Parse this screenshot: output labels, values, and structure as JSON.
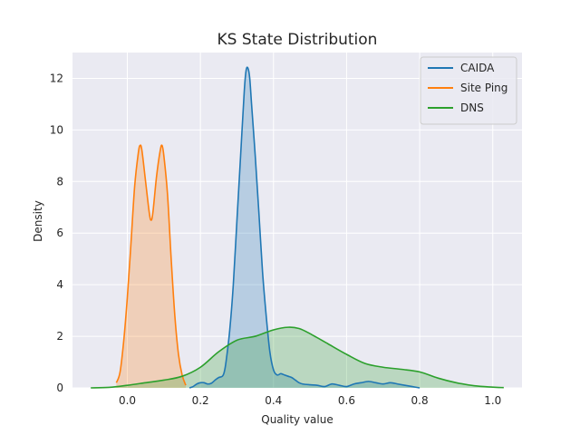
{
  "chart_data": {
    "type": "area",
    "title": "KS State Distribution",
    "xlabel": "Quality value",
    "ylabel": "Density",
    "xlim": [
      -0.15,
      1.08
    ],
    "ylim": [
      0,
      13
    ],
    "xticks": [
      0.0,
      0.2,
      0.4,
      0.6,
      0.8,
      1.0
    ],
    "xtick_labels": [
      "0.0",
      "0.2",
      "0.4",
      "0.6",
      "0.8",
      "1.0"
    ],
    "yticks": [
      0,
      2,
      4,
      6,
      8,
      10,
      12
    ],
    "ytick_labels": [
      "0",
      "2",
      "4",
      "6",
      "8",
      "10",
      "12"
    ],
    "grid": true,
    "legend_position": "top-right",
    "series": [
      {
        "name": "CAIDA",
        "color": "#1f77b4",
        "fill": true,
        "points": [
          [
            0.17,
            0.0
          ],
          [
            0.18,
            0.05
          ],
          [
            0.19,
            0.15
          ],
          [
            0.2,
            0.2
          ],
          [
            0.21,
            0.2
          ],
          [
            0.22,
            0.15
          ],
          [
            0.23,
            0.18
          ],
          [
            0.24,
            0.3
          ],
          [
            0.25,
            0.4
          ],
          [
            0.26,
            0.45
          ],
          [
            0.265,
            0.6
          ],
          [
            0.27,
            1.0
          ],
          [
            0.28,
            2.2
          ],
          [
            0.29,
            4.0
          ],
          [
            0.3,
            6.5
          ],
          [
            0.31,
            9.0
          ],
          [
            0.32,
            11.5
          ],
          [
            0.325,
            12.3
          ],
          [
            0.33,
            12.4
          ],
          [
            0.335,
            12.0
          ],
          [
            0.34,
            11.0
          ],
          [
            0.35,
            9.0
          ],
          [
            0.36,
            6.8
          ],
          [
            0.37,
            4.5
          ],
          [
            0.38,
            2.8
          ],
          [
            0.39,
            1.4
          ],
          [
            0.4,
            0.7
          ],
          [
            0.41,
            0.5
          ],
          [
            0.42,
            0.55
          ],
          [
            0.43,
            0.5
          ],
          [
            0.44,
            0.45
          ],
          [
            0.45,
            0.4
          ],
          [
            0.46,
            0.3
          ],
          [
            0.47,
            0.2
          ],
          [
            0.48,
            0.15
          ],
          [
            0.5,
            0.12
          ],
          [
            0.52,
            0.1
          ],
          [
            0.54,
            0.05
          ],
          [
            0.56,
            0.15
          ],
          [
            0.58,
            0.1
          ],
          [
            0.6,
            0.05
          ],
          [
            0.62,
            0.15
          ],
          [
            0.64,
            0.2
          ],
          [
            0.66,
            0.25
          ],
          [
            0.68,
            0.2
          ],
          [
            0.7,
            0.15
          ],
          [
            0.72,
            0.2
          ],
          [
            0.74,
            0.15
          ],
          [
            0.76,
            0.1
          ],
          [
            0.78,
            0.05
          ],
          [
            0.8,
            0.0
          ]
        ]
      },
      {
        "name": "Site Ping",
        "color": "#ff7f0e",
        "fill": true,
        "points": [
          [
            -0.03,
            0.2
          ],
          [
            -0.02,
            0.6
          ],
          [
            -0.01,
            1.8
          ],
          [
            0.0,
            3.5
          ],
          [
            0.01,
            5.6
          ],
          [
            0.02,
            7.8
          ],
          [
            0.03,
            9.1
          ],
          [
            0.035,
            9.4
          ],
          [
            0.04,
            9.2
          ],
          [
            0.05,
            8.0
          ],
          [
            0.06,
            6.8
          ],
          [
            0.065,
            6.5
          ],
          [
            0.07,
            6.8
          ],
          [
            0.08,
            8.2
          ],
          [
            0.09,
            9.2
          ],
          [
            0.095,
            9.4
          ],
          [
            0.1,
            9.0
          ],
          [
            0.11,
            7.5
          ],
          [
            0.12,
            5.0
          ],
          [
            0.13,
            2.8
          ],
          [
            0.14,
            1.3
          ],
          [
            0.15,
            0.5
          ],
          [
            0.16,
            0.1
          ]
        ]
      },
      {
        "name": "DNS",
        "color": "#2ca02c",
        "fill": true,
        "points": [
          [
            -0.1,
            0.0
          ],
          [
            -0.05,
            0.02
          ],
          [
            0.0,
            0.1
          ],
          [
            0.05,
            0.2
          ],
          [
            0.1,
            0.3
          ],
          [
            0.15,
            0.45
          ],
          [
            0.2,
            0.8
          ],
          [
            0.25,
            1.4
          ],
          [
            0.3,
            1.85
          ],
          [
            0.35,
            2.0
          ],
          [
            0.4,
            2.25
          ],
          [
            0.44,
            2.35
          ],
          [
            0.47,
            2.3
          ],
          [
            0.5,
            2.1
          ],
          [
            0.55,
            1.7
          ],
          [
            0.6,
            1.3
          ],
          [
            0.65,
            0.95
          ],
          [
            0.7,
            0.8
          ],
          [
            0.75,
            0.72
          ],
          [
            0.8,
            0.62
          ],
          [
            0.85,
            0.38
          ],
          [
            0.9,
            0.2
          ],
          [
            0.95,
            0.08
          ],
          [
            1.0,
            0.03
          ],
          [
            1.03,
            0.01
          ]
        ]
      }
    ]
  }
}
